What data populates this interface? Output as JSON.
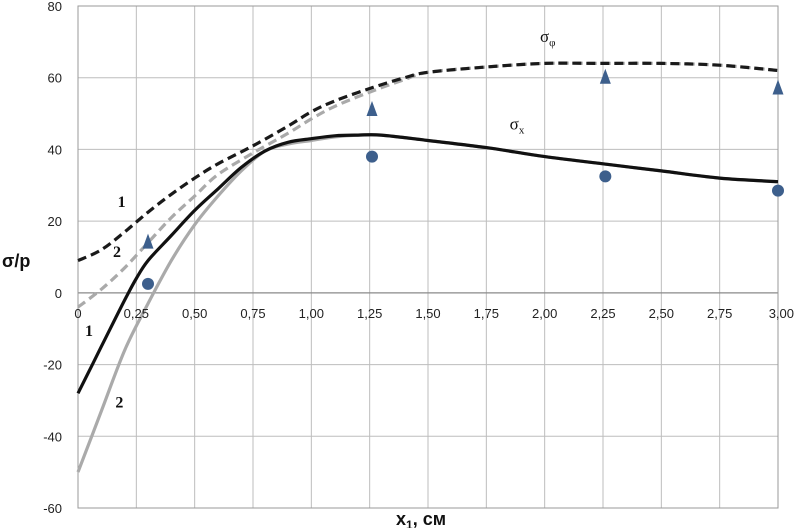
{
  "chart_data": {
    "type": "line",
    "title": "",
    "xlabel": "x",
    "xlabel_sub": "1",
    "xlabel_unit": ", см",
    "ylabel": "σ/p",
    "xlim": [
      0,
      3.0
    ],
    "ylim": [
      -60,
      80
    ],
    "grid": true,
    "x_ticks": [
      "0",
      "0,25",
      "0,50",
      "0,75",
      "1,00",
      "1,25",
      "1,50",
      "1,75",
      "2,00",
      "2,25",
      "2,50",
      "2,75",
      "3,00"
    ],
    "x_tick_values": [
      0,
      0.25,
      0.5,
      0.75,
      1.0,
      1.25,
      1.5,
      1.75,
      2.0,
      2.25,
      2.5,
      2.75,
      3.0
    ],
    "y_ticks": [
      "80",
      "60",
      "40",
      "20",
      "0",
      "-20",
      "-40",
      "-60"
    ],
    "y_tick_values": [
      80,
      60,
      40,
      20,
      0,
      -20,
      -40,
      -60
    ],
    "series": [
      {
        "label": "1",
        "group": "σφ",
        "style": "dashed",
        "color": "#1a1a1a",
        "x": [
          0,
          0.1,
          0.2,
          0.3,
          0.4,
          0.5,
          0.6,
          0.75,
          0.9,
          1.0,
          1.1,
          1.25,
          1.4,
          1.5,
          1.75,
          2.0,
          2.25,
          2.5,
          2.75,
          3.0
        ],
        "y": [
          9,
          12,
          17,
          22.5,
          27.5,
          32,
          36,
          41,
          46.5,
          50.5,
          53.5,
          57,
          60,
          61.5,
          63,
          64,
          64,
          64,
          63.5,
          62
        ]
      },
      {
        "label": "2",
        "group": "σφ",
        "style": "dashed",
        "color": "#aaaaaa",
        "x": [
          0,
          0.1,
          0.2,
          0.3,
          0.4,
          0.5,
          0.6,
          0.75,
          0.9,
          1.0,
          1.1,
          1.25,
          1.4,
          1.5,
          1.75,
          2.0,
          2.25,
          2.5,
          2.75,
          3.0
        ],
        "y": [
          -4,
          1,
          7,
          14,
          21,
          27,
          33,
          39,
          44.5,
          48.5,
          52,
          56,
          59.5,
          61.5,
          63,
          64,
          64,
          64,
          63.5,
          62
        ]
      },
      {
        "label": "1",
        "group": "σx",
        "style": "solid",
        "color": "#111111",
        "x": [
          0,
          0.1,
          0.2,
          0.25,
          0.3,
          0.4,
          0.5,
          0.6,
          0.7,
          0.8,
          0.9,
          1.0,
          1.1,
          1.2,
          1.3,
          1.5,
          1.75,
          2.0,
          2.25,
          2.5,
          2.75,
          3.0
        ],
        "y": [
          -28,
          -15,
          -2,
          4,
          9,
          16,
          23,
          29,
          35,
          39.5,
          42,
          43,
          43.8,
          44,
          44,
          42.5,
          40.5,
          38,
          36,
          34,
          32,
          31
        ]
      },
      {
        "label": "2",
        "group": "σx",
        "style": "solid",
        "color": "#aaaaaa",
        "x": [
          0,
          0.1,
          0.2,
          0.3,
          0.4,
          0.5,
          0.6,
          0.7,
          0.8,
          0.9,
          1.0,
          1.1,
          1.2,
          1.3,
          1.5,
          1.75,
          2.0,
          2.25,
          2.5,
          2.75,
          3.0
        ],
        "y": [
          -50,
          -33,
          -16,
          -3,
          9,
          19,
          27,
          34,
          39.5,
          41.5,
          42.5,
          43.5,
          44,
          44,
          42.5,
          40.5,
          38,
          36,
          34,
          32,
          31
        ]
      }
    ],
    "markers": [
      {
        "group": "σφ",
        "shape": "triangle",
        "color": "#3d5f8c",
        "x": [
          0.3,
          1.26,
          2.26,
          3.0
        ],
        "y": [
          14,
          51,
          60,
          57
        ]
      },
      {
        "group": "σx",
        "shape": "circle",
        "color": "#3d5f8c",
        "x": [
          0.3,
          1.26,
          2.26,
          3.0
        ],
        "y": [
          2.5,
          38,
          32.5,
          28.5
        ]
      }
    ],
    "annotations": [
      {
        "text": "1",
        "x": 0.17,
        "y": 24
      },
      {
        "text": "2",
        "x": 0.15,
        "y": 10
      },
      {
        "text": "1",
        "x": 0.03,
        "y": -12
      },
      {
        "text": "2",
        "x": 0.16,
        "y": -32
      },
      {
        "text": "σ",
        "sub": "φ",
        "x": 1.98,
        "y": 70
      },
      {
        "text": "σ",
        "sub": "x",
        "x": 1.85,
        "y": 45.5
      }
    ]
  }
}
